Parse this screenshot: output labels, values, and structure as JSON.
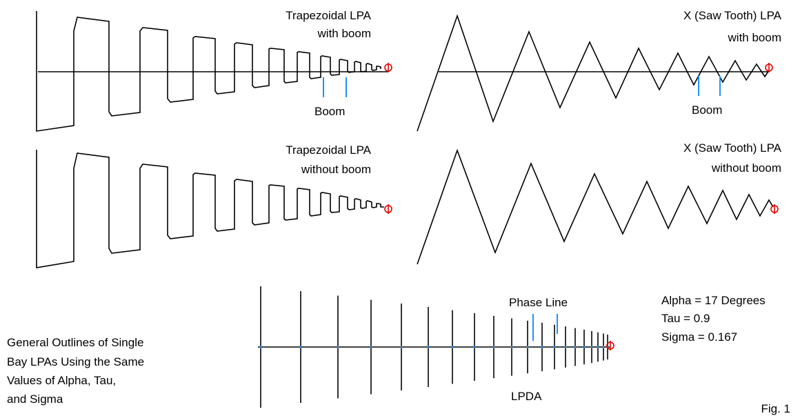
{
  "panels": {
    "trap_boom": {
      "title_line1": "Trapezoidal LPA",
      "title_line2": "with boom",
      "boom_label": "Boom"
    },
    "saw_boom": {
      "title_line1": "X (Saw Tooth) LPA",
      "title_line2": "with boom",
      "boom_label": "Boom"
    },
    "trap_noboom": {
      "title_line1": "Trapezoidal LPA",
      "title_line2": "without boom"
    },
    "saw_noboom": {
      "title_line1": "X (Saw Tooth) LPA",
      "title_line2": "without boom"
    },
    "lpda": {
      "label": "LPDA",
      "phase_line_label": "Phase Line"
    }
  },
  "parameters": {
    "alpha": "Alpha = 17 Degrees",
    "tau": "Tau = 0.9",
    "sigma": "Sigma = 0.167"
  },
  "caption": {
    "line1": "General Outlines of Single",
    "line2": "Bay LPAs Using the Same",
    "line3": "Values of Alpha, Tau,",
    "line4": "and Sigma"
  },
  "figure_label": "Fig. 1",
  "colors": {
    "wire": "#000000",
    "boom_marker": "#1e90ff",
    "feed_point": "#e00000"
  }
}
